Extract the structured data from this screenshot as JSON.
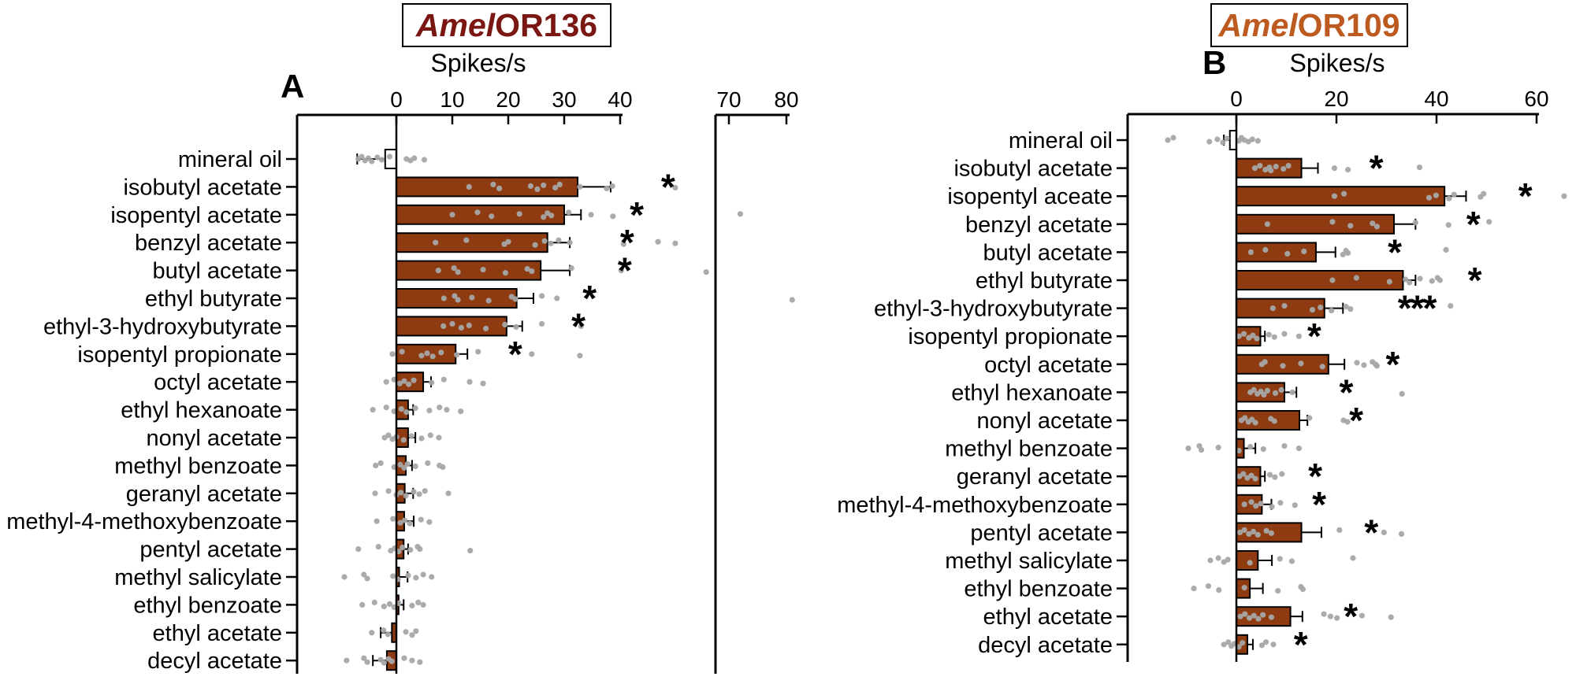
{
  "figure": {
    "background": "#ffffff",
    "scatter_dot_color": "#a6a6a6",
    "error_bar_color": "#000000",
    "axis_color": "#000000"
  },
  "chart_data": [
    {
      "type": "bar",
      "orientation": "horizontal",
      "panel_label": "A",
      "title": "AmelOR136",
      "title_italic": "Amel",
      "title_rest": "OR136",
      "title_color": "#7a1712",
      "bar_color": "#8e3b12",
      "open_bar_color": "#ffffff",
      "dot_color": "#a6a6a6",
      "xlabel": "Spikes/s",
      "xticks": [
        0,
        10,
        20,
        30,
        40,
        70,
        80
      ],
      "axis_break": [
        40,
        68
      ],
      "xlim": [
        -18,
        81
      ],
      "control_category": "mineral oil",
      "legend": "none",
      "grid": false,
      "categories": [
        "mineral oil",
        "isobutyl acetate",
        "isopentyl acetate",
        "benzyl acetate",
        "butyl acetate",
        "ethyl butyrate",
        "ethyl-3-hydroxybutyrate",
        "isopentyl propionate",
        "octyl acetate",
        "ethyl hexanoate",
        "nonyl acetate",
        "methyl benzoate",
        "geranyl acetate",
        "methyl-4-methoxybenzoate",
        "pentyl acetate",
        "methyl salicylate",
        "ethyl benzoate",
        "ethyl acetate",
        "decyl acetate"
      ],
      "values": [
        -2,
        32.4,
        30,
        27,
        25.8,
        21.5,
        19.7,
        10.6,
        4.8,
        2.1,
        2.1,
        1.7,
        1.5,
        1.4,
        1.3,
        0.5,
        0.4,
        -0.8,
        -1.7
      ],
      "sem_end": [
        -7,
        38.3,
        33,
        31,
        31,
        24.5,
        22.5,
        12.7,
        6.2,
        3,
        3.4,
        2.8,
        3,
        3.1,
        2.1,
        2,
        1.3,
        -2.8,
        -4.2
      ],
      "significance": [
        "",
        "*",
        "*",
        "*",
        "*",
        "*",
        "*",
        "*",
        "",
        "",
        "",
        "",
        "",
        "",
        "",
        "",
        "",
        "",
        ""
      ],
      "sig_x": [
        null,
        53.7,
        44.6,
        41.8,
        41.1,
        34.4,
        32.4,
        21.1,
        null,
        null,
        null,
        null,
        null,
        null,
        null,
        null,
        null,
        null,
        null
      ],
      "scatter": [
        [
          -6.8,
          -6.2,
          -5.6,
          -5,
          -4.4,
          -3.4,
          -2.6,
          -1.2,
          1.8,
          2.5,
          3.2,
          5
        ],
        [
          13,
          17.3,
          18.4,
          24,
          25.2,
          26.3,
          28.4,
          29.2,
          32.8,
          37.6,
          38.6,
          56
        ],
        [
          10,
          14.5,
          17,
          22,
          26.3,
          27,
          27.7,
          30.8,
          34.8,
          38.7,
          72
        ],
        [
          7,
          12.5,
          19.3,
          20,
          24.8,
          26.5,
          27.6,
          29,
          31,
          41,
          51,
          56
        ],
        [
          7.5,
          10.3,
          11,
          15.5,
          19.5,
          23.4,
          24.2,
          31.3,
          40.3,
          65
        ],
        [
          8.5,
          10.4,
          11,
          13.5,
          16.5,
          20.6,
          21.3,
          26,
          28.7,
          81
        ],
        [
          8.4,
          10,
          11.6,
          13,
          16,
          19.4,
          21.4,
          26,
          33
        ],
        [
          -0.7,
          1,
          4.5,
          5.5,
          6.5,
          8,
          10.8,
          14.6,
          24.2,
          32.8
        ],
        [
          -1.8,
          -0.4,
          0.6,
          1.4,
          2.2,
          3.1,
          6.3,
          8.5,
          13.1,
          15.5
        ],
        [
          -4.2,
          -1.8,
          -0.4,
          0.9,
          1.8,
          3.4,
          5.9,
          7.7,
          9,
          11.5
        ],
        [
          -2.1,
          -1.4,
          -0.7,
          0,
          1.3,
          2.7,
          4.5,
          6.1,
          7.6
        ],
        [
          -3.7,
          -2.8,
          -0.4,
          0.7,
          1.4,
          2,
          3.4,
          5.6,
          7.7,
          8.3
        ],
        [
          -3.8,
          -1.4,
          0,
          0.8,
          1.7,
          3.1,
          4.1,
          5.1,
          9.3
        ],
        [
          -3.5,
          -0.6,
          0.7,
          1.5,
          2.4,
          4.4,
          5.9
        ],
        [
          -6.8,
          -3.2,
          -1,
          -0.3,
          0.4,
          1.1,
          2.5,
          3.8,
          4.2,
          13.2
        ],
        [
          -9.3,
          -5.8,
          -5.2,
          -0.6,
          0.3,
          2.1,
          3.5,
          4.8,
          6.3
        ],
        [
          -6.1,
          -3.9,
          -2.2,
          -1.2,
          -0.4,
          0.4,
          2.8,
          3.9,
          4.8
        ],
        [
          -4.4,
          -2.3,
          -1.5,
          1.7,
          2.8,
          3.5
        ],
        [
          -8.9,
          -5.8,
          -5.2,
          -2.8,
          -2.2,
          -1.4,
          -0.8,
          1.4,
          2.8,
          4.2
        ]
      ]
    },
    {
      "type": "bar",
      "orientation": "horizontal",
      "panel_label": "B",
      "title": "AmelOR109",
      "title_italic": "Amel",
      "title_rest": "OR109",
      "title_color": "#bd5a1f",
      "bar_color": "#8e3b12",
      "open_bar_color": "#ffffff",
      "dot_color": "#a6a6a6",
      "xlabel": "Spikes/s",
      "xticks": [
        0,
        20,
        40,
        60
      ],
      "axis_break": null,
      "xlim": [
        -15,
        66
      ],
      "control_category": "mineral oil",
      "legend": "none",
      "grid": false,
      "categories": [
        "mineral oil",
        "isobutyl acetate",
        "isopentyl aceate",
        "benzyl acetate",
        "butyl acetate",
        "ethyl butyrate",
        "ethyl-3-hydroxybutyrate",
        "isopentyl propionate",
        "octyl acetate",
        "ethyl hexanoate",
        "nonyl acetate",
        "methyl benzoate",
        "geranyl acetate",
        "methyl-4-methoxybenzoate",
        "pentyl acetate",
        "methyl salicylate",
        "ethyl benzoate",
        "ethyl acetate",
        "decyl acetate"
      ],
      "values": [
        -1.3,
        13,
        41.6,
        31.5,
        15.9,
        33.3,
        17.6,
        4.8,
        18.4,
        9.6,
        12.6,
        1.5,
        4.8,
        5.1,
        13,
        4.3,
        2.7,
        10.8,
        2.2
      ],
      "sem_end": [
        -2.5,
        16.3,
        45.9,
        35.8,
        19.8,
        35.8,
        21.3,
        5.7,
        21.6,
        12,
        14.2,
        3.8,
        5.7,
        7,
        17,
        7.1,
        5.3,
        13.2,
        3.3
      ],
      "significance": [
        "",
        "*",
        "*",
        "*",
        "*",
        "*",
        "***",
        "*",
        "*",
        "*",
        "*",
        "",
        "*",
        "*",
        "*",
        "",
        "",
        "*",
        "*"
      ],
      "sig_x": [
        null,
        27.8,
        57.6,
        47.2,
        31.5,
        47.5,
        36,
        15.4,
        31.1,
        21.8,
        23.8,
        null,
        15.6,
        16.4,
        26.8,
        null,
        null,
        22.7,
        12.7
      ],
      "scatter": [
        [
          -13.7,
          -12.6,
          -5.4,
          -3.8,
          -2.7,
          -1.9,
          0.5,
          1,
          1.6,
          2.4,
          3.2,
          4.3
        ],
        [
          3.7,
          4.7,
          5.8,
          6.6,
          6.9,
          7.9,
          9.4,
          10.4,
          19.6,
          22.3,
          36.6
        ],
        [
          19.6,
          21.5,
          38.5,
          39.9,
          42.5,
          43.5,
          48.8,
          49.4,
          65.5
        ],
        [
          6.2,
          19.2,
          22.8,
          27.2,
          28.1,
          35.8,
          42.4,
          50.5
        ],
        [
          2.9,
          5.8,
          10.2,
          13.5,
          21.3,
          21.9,
          22.3,
          41.9
        ],
        [
          19.2,
          24,
          30.6,
          33.8,
          34.6,
          36.7,
          39.1,
          40.2,
          40.7
        ],
        [
          7.3,
          9.6,
          15.2,
          16.8,
          19,
          21.9,
          22.8,
          42.8
        ],
        [
          0.5,
          1.5,
          2.5,
          3.3,
          4.1,
          6.5,
          7.6,
          9.6,
          12.5
        ],
        [
          5.1,
          5.7,
          9.3,
          12.9,
          17.2,
          24.1,
          25.5,
          27.2,
          27.8,
          28.1
        ],
        [
          2.8,
          3.5,
          4.2,
          4.9,
          5.5,
          6.2,
          7.8,
          9,
          11.2,
          33.1
        ],
        [
          1,
          1.7,
          2.4,
          3.1,
          3.8,
          6.9,
          7.6,
          14.6,
          21.4,
          22.2
        ],
        [
          -9.6,
          -7.4,
          -7,
          -3.6,
          0.5,
          2.8,
          5.4,
          9.6,
          12.5
        ],
        [
          0.6,
          1.4,
          2.2,
          3,
          3.8,
          6.7,
          7.7,
          9.1
        ],
        [
          1.6,
          3,
          3.9,
          4.9,
          7.1,
          8.8,
          11.7
        ],
        [
          0.7,
          1.6,
          2.5,
          3.4,
          4.3,
          6,
          7,
          20.6,
          29.5,
          33
        ],
        [
          -5.2,
          -3.6,
          -2.5,
          -1.7,
          2.7,
          8.7,
          11.1,
          23.3
        ],
        [
          -8.5,
          -5.6,
          -3.5,
          1.6,
          8.3,
          12.9,
          13.3
        ],
        [
          0.8,
          1.7,
          2.6,
          3.5,
          4.4,
          5.3,
          7,
          17.5,
          18.8,
          20.1,
          25.1,
          30.9
        ],
        [
          -2.5,
          -1.6,
          -1,
          -0.4,
          0.5,
          1.2,
          5.1,
          5.9,
          7.4
        ]
      ]
    }
  ]
}
